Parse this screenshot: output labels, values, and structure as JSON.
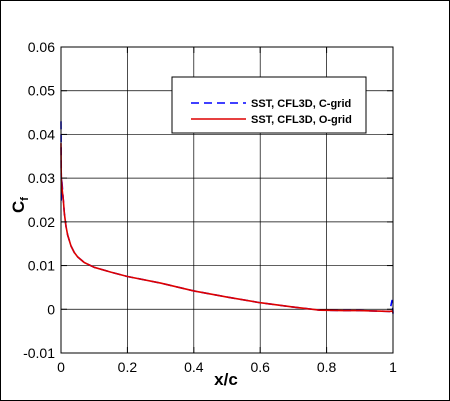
{
  "chart_data": {
    "type": "line",
    "title": "",
    "xlabel": "x/c",
    "ylabel_main": "C",
    "ylabel_sub": "f",
    "xlim": [
      0,
      1
    ],
    "ylim": [
      -0.01,
      0.06
    ],
    "x_ticks": [
      0,
      0.2,
      0.4,
      0.6,
      0.8,
      1
    ],
    "x_tick_labels": [
      "0",
      "0.2",
      "0.4",
      "0.6",
      "0.8",
      "1"
    ],
    "y_ticks": [
      -0.01,
      0,
      0.01,
      0.02,
      0.03,
      0.04,
      0.05,
      0.06
    ],
    "y_tick_labels": [
      "-0.01",
      "0",
      "0.01",
      "0.02",
      "0.03",
      "0.04",
      "0.05",
      "0.06"
    ],
    "grid": true,
    "legend_position": "top-right",
    "series": [
      {
        "name": "SST, CFL3D, C-grid",
        "color": "#0000ff",
        "style": "dashed",
        "x": [
          0,
          0.0005,
          0.001,
          0.002,
          0.004,
          0.007,
          0.01,
          0.015,
          0.02,
          0.03,
          0.04,
          0.05,
          0.07,
          0.1,
          0.15,
          0.2,
          0.3,
          0.4,
          0.5,
          0.6,
          0.7,
          0.78,
          0.85,
          0.9,
          0.95,
          0.99,
          0.997,
          0.999,
          1.0
        ],
        "y": [
          0.043,
          0.036,
          0.025,
          0.03,
          0.028,
          0.025,
          0.022,
          0.019,
          0.017,
          0.0145,
          0.013,
          0.012,
          0.0107,
          0.0096,
          0.0085,
          0.0075,
          0.006,
          0.0042,
          0.0028,
          0.0015,
          0.0005,
          -0.0002,
          -0.0003,
          -0.0003,
          -0.0004,
          -0.0005,
          0.002,
          0.0005,
          -0.001
        ]
      },
      {
        "name": "SST, CFL3D, O-grid",
        "color": "#dd0000",
        "style": "solid",
        "x": [
          0,
          0.0005,
          0.001,
          0.002,
          0.004,
          0.007,
          0.01,
          0.015,
          0.02,
          0.03,
          0.04,
          0.05,
          0.07,
          0.1,
          0.15,
          0.2,
          0.3,
          0.4,
          0.5,
          0.6,
          0.7,
          0.78,
          0.85,
          0.9,
          0.95,
          0.99,
          0.997,
          0.999,
          1.0
        ],
        "y": [
          0.038,
          0.032,
          0.03,
          0.029,
          0.027,
          0.025,
          0.022,
          0.019,
          0.017,
          0.0145,
          0.013,
          0.012,
          0.0107,
          0.0096,
          0.0085,
          0.0075,
          0.006,
          0.0042,
          0.0028,
          0.0015,
          0.0005,
          -0.0002,
          -0.0003,
          -0.0003,
          -0.0004,
          -0.0005,
          -0.0004,
          -0.0006,
          -0.0008
        ]
      }
    ]
  }
}
